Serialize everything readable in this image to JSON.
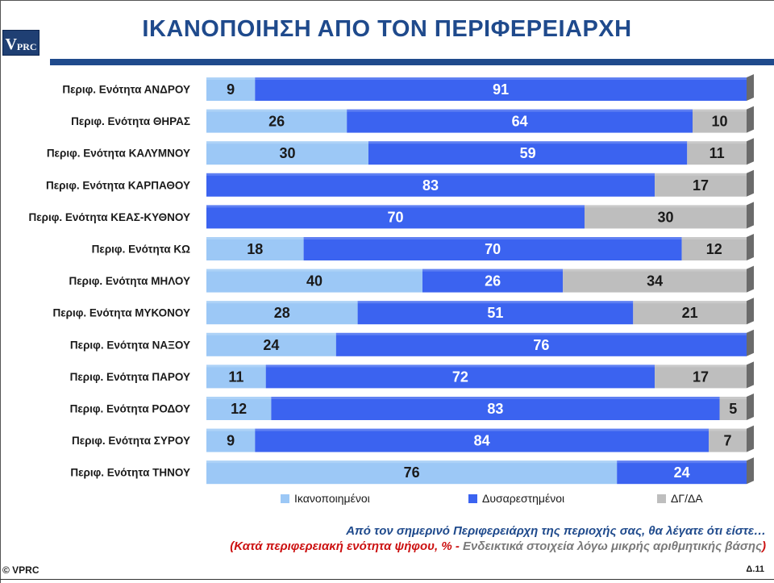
{
  "header": {
    "title": "ΙΚΑΝΟΠΟΙΗΣΗ ΑΠΟ ΤΟΝ ΠΕΡΙΦΕΡΕΙΑΡΧΗ",
    "logo_big": "V",
    "logo_small": "PRC"
  },
  "colors": {
    "satisfied": "#9cc8f6",
    "dissatisfied": "#3b63f0",
    "dk_na": "#bebebe",
    "title": "#1f4a8c"
  },
  "chart_data": {
    "type": "bar",
    "orientation": "horizontal-stacked-100",
    "categories": [
      "Περιφ. Ενότητα ΑΝΔΡΟΥ",
      "Περιφ. Ενότητα ΘΗΡΑΣ",
      "Περιφ. Ενότητα ΚΑΛΥΜΝΟΥ",
      "Περιφ. Ενότητα ΚΑΡΠΑΘΟΥ",
      "Περιφ. Ενότητα ΚΕΑΣ-ΚΥΘΝΟΥ",
      "Περιφ. Ενότητα ΚΩ",
      "Περιφ. Ενότητα ΜΗΛΟΥ",
      "Περιφ. Ενότητα ΜΥΚΟΝΟΥ",
      "Περιφ. Ενότητα ΝΑΞΟΥ",
      "Περιφ. Ενότητα ΠΑΡΟΥ",
      "Περιφ. Ενότητα ΡΟΔΟΥ",
      "Περιφ. Ενότητα ΣΥΡΟΥ",
      "Περιφ. Ενότητα ΤΗΝΟΥ"
    ],
    "series": [
      {
        "name": "Ικανοποιημένοι",
        "color": "#9cc8f6",
        "values": [
          9,
          26,
          30,
          0,
          0,
          18,
          40,
          28,
          24,
          11,
          12,
          9,
          76
        ]
      },
      {
        "name": "Δυσαρεστημένοι",
        "color": "#3b63f0",
        "values": [
          91,
          64,
          59,
          83,
          70,
          70,
          26,
          51,
          76,
          72,
          83,
          84,
          24
        ]
      },
      {
        "name": "ΔΓ/ΔΑ",
        "color": "#bebebe",
        "values": [
          0,
          10,
          11,
          17,
          30,
          12,
          34,
          21,
          0,
          17,
          5,
          7,
          0
        ]
      }
    ],
    "xlim": [
      0,
      100
    ],
    "legend_position": "bottom"
  },
  "footnotes": {
    "line1": "Από τον σημερινό Περιφερειάρχη της περιοχής σας, θα λέγατε ότι είστε…",
    "line2_red": "(Κατά περιφερειακή ενότητα ψήφου, % - ",
    "line2_gray": "Ενδεικτικά στοιχεία λόγω μικρής αριθμητικής βάσης",
    "line2_end": ")"
  },
  "footer": {
    "copyright": "© VPRC",
    "page": "Δ.11"
  }
}
